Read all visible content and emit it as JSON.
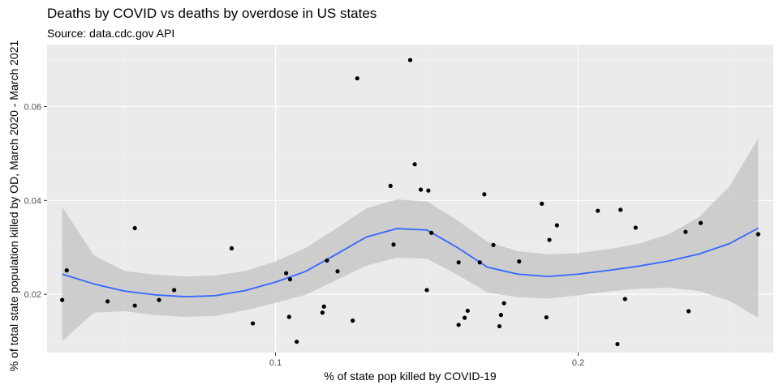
{
  "chart_data": {
    "type": "scatter",
    "title": "Deaths by COVID vs deaths by overdose in US states",
    "subtitle": "Source: data.cdc.gov API",
    "xlabel": "% of state pop killed by COVID-19",
    "ylabel": "% of total state population killed by OD, March 2020 - March 2021",
    "xlim": [
      0.0245,
      0.2645
    ],
    "ylim": [
      0.0076,
      0.0732
    ],
    "x_ticks": [
      0.1,
      0.2
    ],
    "x_tick_labels": [
      "0.1",
      "0.2"
    ],
    "y_ticks": [
      0.02,
      0.04,
      0.06
    ],
    "y_tick_labels": [
      "0.02",
      "0.04",
      "0.06"
    ],
    "grid": true,
    "points": [
      {
        "x": 0.0295,
        "y": 0.0188
      },
      {
        "x": 0.031,
        "y": 0.0251
      },
      {
        "x": 0.0445,
        "y": 0.0185
      },
      {
        "x": 0.0535,
        "y": 0.0341
      },
      {
        "x": 0.0535,
        "y": 0.0176
      },
      {
        "x": 0.0615,
        "y": 0.0188
      },
      {
        "x": 0.0665,
        "y": 0.0209
      },
      {
        "x": 0.0855,
        "y": 0.0298
      },
      {
        "x": 0.0925,
        "y": 0.0138
      },
      {
        "x": 0.1035,
        "y": 0.0245
      },
      {
        "x": 0.1045,
        "y": 0.0152
      },
      {
        "x": 0.1048,
        "y": 0.0232
      },
      {
        "x": 0.107,
        "y": 0.0099
      },
      {
        "x": 0.1155,
        "y": 0.0161
      },
      {
        "x": 0.116,
        "y": 0.0174
      },
      {
        "x": 0.117,
        "y": 0.0272
      },
      {
        "x": 0.1205,
        "y": 0.0249
      },
      {
        "x": 0.1255,
        "y": 0.0144
      },
      {
        "x": 0.127,
        "y": 0.066
      },
      {
        "x": 0.138,
        "y": 0.0431
      },
      {
        "x": 0.139,
        "y": 0.0306
      },
      {
        "x": 0.1445,
        "y": 0.0699
      },
      {
        "x": 0.146,
        "y": 0.0477
      },
      {
        "x": 0.148,
        "y": 0.0423
      },
      {
        "x": 0.15,
        "y": 0.0209
      },
      {
        "x": 0.1505,
        "y": 0.0421
      },
      {
        "x": 0.1515,
        "y": 0.0331
      },
      {
        "x": 0.1605,
        "y": 0.0268
      },
      {
        "x": 0.1605,
        "y": 0.0135
      },
      {
        "x": 0.1625,
        "y": 0.015
      },
      {
        "x": 0.1635,
        "y": 0.0165
      },
      {
        "x": 0.1675,
        "y": 0.0268
      },
      {
        "x": 0.169,
        "y": 0.0413
      },
      {
        "x": 0.172,
        "y": 0.0305
      },
      {
        "x": 0.174,
        "y": 0.0132
      },
      {
        "x": 0.1745,
        "y": 0.0156
      },
      {
        "x": 0.1755,
        "y": 0.0181
      },
      {
        "x": 0.1805,
        "y": 0.027
      },
      {
        "x": 0.188,
        "y": 0.0393
      },
      {
        "x": 0.1895,
        "y": 0.0151
      },
      {
        "x": 0.1905,
        "y": 0.0316
      },
      {
        "x": 0.193,
        "y": 0.0347
      },
      {
        "x": 0.2065,
        "y": 0.0378
      },
      {
        "x": 0.213,
        "y": 0.0094
      },
      {
        "x": 0.214,
        "y": 0.038
      },
      {
        "x": 0.2155,
        "y": 0.019
      },
      {
        "x": 0.219,
        "y": 0.0342
      },
      {
        "x": 0.2355,
        "y": 0.0333
      },
      {
        "x": 0.2365,
        "y": 0.0164
      },
      {
        "x": 0.2405,
        "y": 0.0352
      },
      {
        "x": 0.2595,
        "y": 0.0328
      }
    ],
    "smooth": {
      "x": [
        0.0295,
        0.04,
        0.05,
        0.06,
        0.07,
        0.08,
        0.09,
        0.1,
        0.11,
        0.12,
        0.13,
        0.14,
        0.15,
        0.16,
        0.17,
        0.18,
        0.19,
        0.2,
        0.21,
        0.22,
        0.23,
        0.24,
        0.25,
        0.2595
      ],
      "y": [
        0.0243,
        0.0222,
        0.0207,
        0.0199,
        0.0195,
        0.0197,
        0.0208,
        0.0226,
        0.0249,
        0.0285,
        0.0322,
        0.034,
        0.0337,
        0.03,
        0.0258,
        0.0243,
        0.0238,
        0.0243,
        0.0251,
        0.026,
        0.0271,
        0.0286,
        0.0308,
        0.0341
      ],
      "upper": [
        0.0386,
        0.0283,
        0.025,
        0.0242,
        0.0238,
        0.024,
        0.025,
        0.027,
        0.0299,
        0.034,
        0.0383,
        0.0402,
        0.0398,
        0.0358,
        0.0312,
        0.0292,
        0.0285,
        0.0288,
        0.0296,
        0.0308,
        0.0328,
        0.0365,
        0.043,
        0.0532
      ],
      "lower": [
        0.01,
        0.0161,
        0.0164,
        0.0156,
        0.0152,
        0.0154,
        0.0166,
        0.0182,
        0.0199,
        0.023,
        0.0261,
        0.0278,
        0.0276,
        0.0242,
        0.0204,
        0.0194,
        0.0191,
        0.0198,
        0.0206,
        0.0212,
        0.0214,
        0.0207,
        0.0186,
        0.015
      ]
    },
    "colors": {
      "panel": "#ebebeb",
      "grid_major": "#ffffff",
      "grid_minor": "#f5f5f5",
      "ribbon": "#c8c8c8",
      "line": "#3366ff",
      "point": "#000000",
      "tick": "#333333"
    }
  }
}
